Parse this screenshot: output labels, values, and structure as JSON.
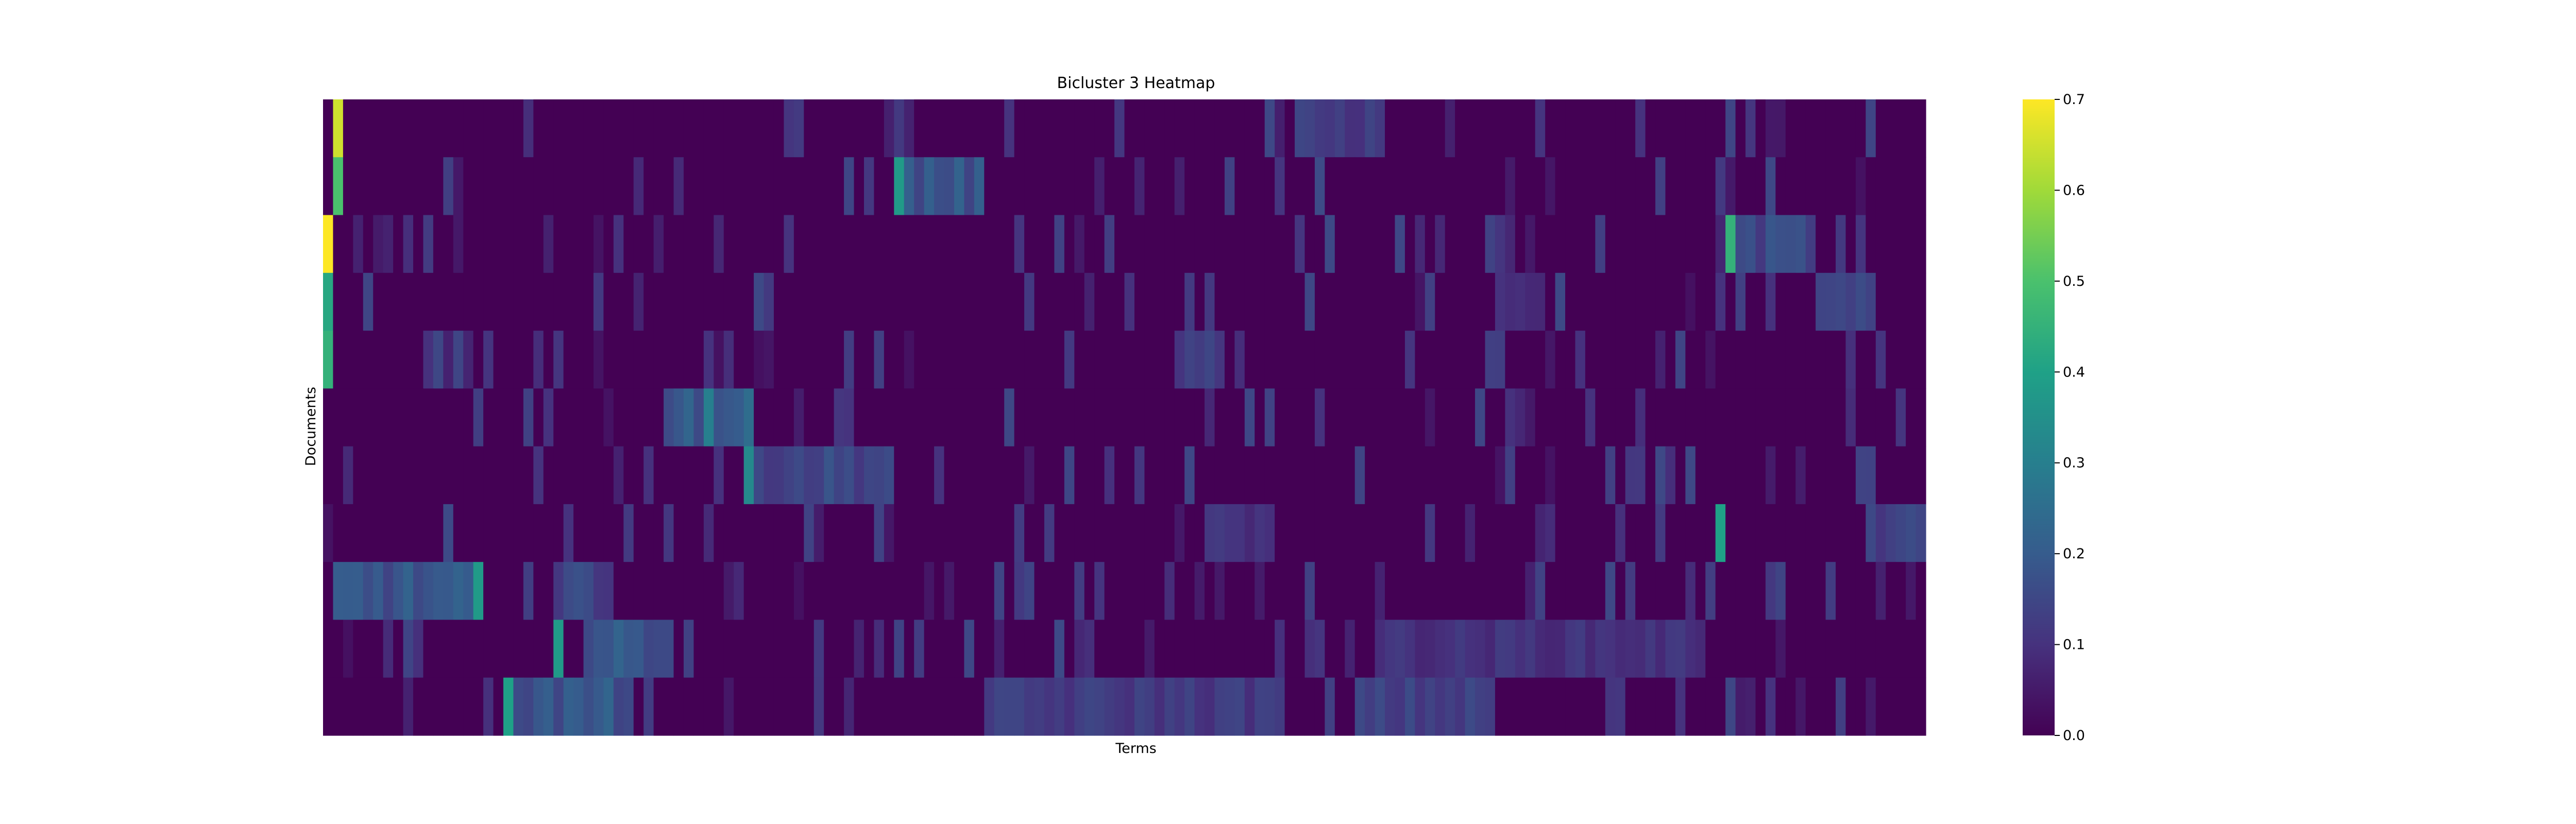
{
  "chart_data": {
    "type": "heatmap",
    "title": "Bicluster 3 Heatmap",
    "xlabel": "Terms",
    "ylabel": "Documents",
    "n_rows": 11,
    "n_cols": 160,
    "colormap": "viridis",
    "value_range": [
      0.0,
      0.7
    ],
    "colorbar_ticks": [
      0.0,
      0.1,
      0.2,
      0.3,
      0.4,
      0.5,
      0.6,
      0.7
    ],
    "colorbar_tick_labels": [
      "0.0",
      "0.1",
      "0.2",
      "0.3",
      "0.4",
      "0.5",
      "0.6",
      "0.7"
    ],
    "grid": false,
    "x_tick_labels_shown": false,
    "y_tick_labels_shown": false,
    "highlights": [
      {
        "row": 0,
        "col": 1,
        "value": 0.65
      },
      {
        "row": 1,
        "col": 1,
        "value": 0.5
      },
      {
        "row": 2,
        "col": 0,
        "value": 0.7
      },
      {
        "row": 3,
        "col": 0,
        "value": 0.42
      },
      {
        "row": 4,
        "col": 0,
        "value": 0.45
      },
      {
        "row": 1,
        "col": 57,
        "value": 0.38
      },
      {
        "row": 2,
        "col": 140,
        "value": 0.45
      },
      {
        "row": 5,
        "col": 38,
        "value": 0.3
      },
      {
        "row": 6,
        "col": 42,
        "value": 0.33
      },
      {
        "row": 7,
        "col": 139,
        "value": 0.4
      },
      {
        "row": 8,
        "col": 15,
        "value": 0.38
      },
      {
        "row": 10,
        "col": 18,
        "value": 0.4
      },
      {
        "row": 9,
        "col": 23,
        "value": 0.38
      }
    ],
    "blocks": [
      {
        "row": 0,
        "col_start": 97,
        "col_end": 106,
        "value": 0.12
      },
      {
        "row": 1,
        "col_start": 58,
        "col_end": 66,
        "value": 0.18
      },
      {
        "row": 2,
        "col_start": 141,
        "col_end": 149,
        "value": 0.15
      },
      {
        "row": 3,
        "col_start": 149,
        "col_end": 155,
        "value": 0.13
      },
      {
        "row": 3,
        "col_start": 117,
        "col_end": 122,
        "value": 0.09
      },
      {
        "row": 4,
        "col_start": 85,
        "col_end": 90,
        "value": 0.13
      },
      {
        "row": 5,
        "col_start": 34,
        "col_end": 43,
        "value": 0.2
      },
      {
        "row": 6,
        "col_start": 43,
        "col_end": 57,
        "value": 0.15
      },
      {
        "row": 7,
        "col_start": 88,
        "col_end": 95,
        "value": 0.1
      },
      {
        "row": 7,
        "col_start": 154,
        "col_end": 160,
        "value": 0.13
      },
      {
        "row": 8,
        "col_start": 1,
        "col_end": 15,
        "value": 0.18
      },
      {
        "row": 8,
        "col_start": 24,
        "col_end": 29,
        "value": 0.14
      },
      {
        "row": 9,
        "col_start": 26,
        "col_end": 35,
        "value": 0.18
      },
      {
        "row": 9,
        "col_start": 105,
        "col_end": 138,
        "value": 0.1
      },
      {
        "row": 10,
        "col_start": 19,
        "col_end": 31,
        "value": 0.18
      },
      {
        "row": 10,
        "col_start": 66,
        "col_end": 96,
        "value": 0.12
      },
      {
        "row": 10,
        "col_start": 103,
        "col_end": 117,
        "value": 0.13
      }
    ],
    "base_value": 0.0,
    "sparse_value_range": [
      0.03,
      0.16
    ]
  }
}
